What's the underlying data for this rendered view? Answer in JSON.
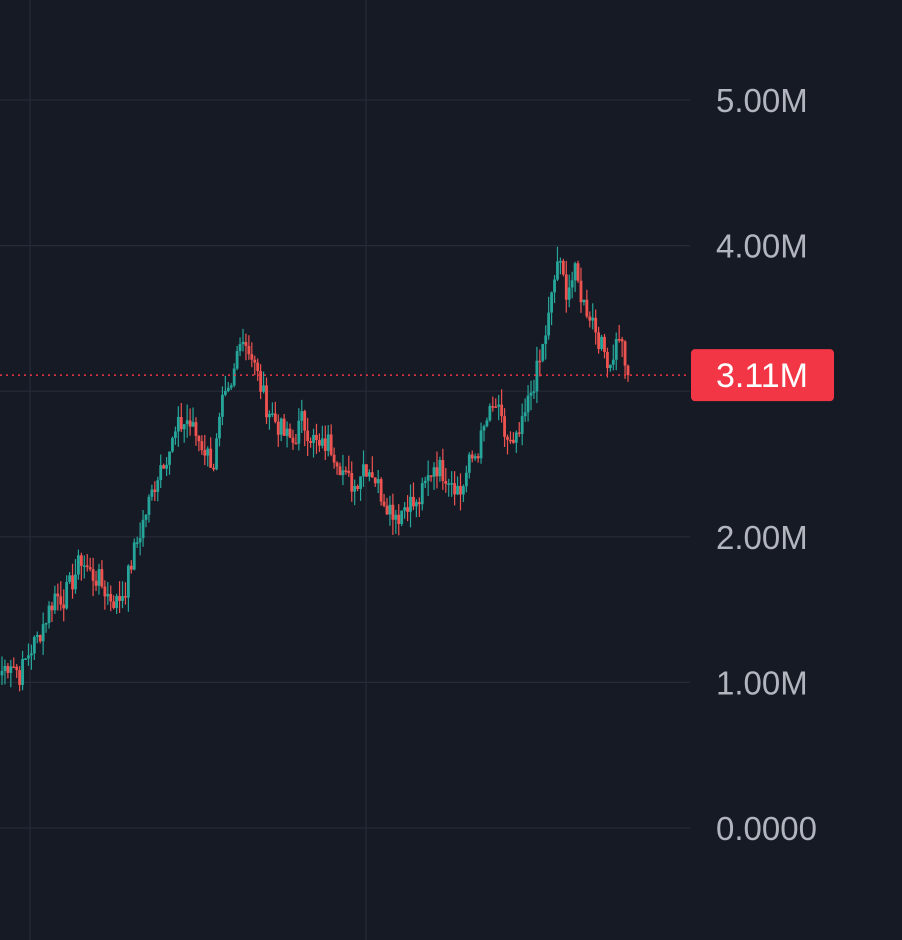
{
  "colors": {
    "background": "#161a25",
    "grid": "#262b38",
    "up": "#26a69a",
    "down": "#ef5350",
    "price_tag": "#f23645",
    "axis_text": "#b2b5be"
  },
  "price_axis": {
    "ticks": [
      {
        "value": 5000000,
        "label": "5.00M"
      },
      {
        "value": 4000000,
        "label": "4.00M"
      },
      {
        "value": 2000000,
        "label": "2.00M"
      },
      {
        "value": 1000000,
        "label": "1.00M"
      },
      {
        "value": 0,
        "label": "0.0000"
      }
    ]
  },
  "last_price": {
    "value": 3110000,
    "label": "3.11M"
  },
  "chart_data": {
    "type": "candlestick",
    "ylim": [
      0,
      5000000
    ],
    "grid": true,
    "close_values_approx": [
      1080000,
      1150000,
      1050000,
      1200000,
      1300000,
      1450000,
      1600000,
      1580000,
      1700000,
      1850000,
      1750000,
      1700000,
      1600000,
      1550000,
      1650000,
      1900000,
      2100000,
      2300000,
      2500000,
      2600000,
      2750000,
      2800000,
      2700000,
      2600000,
      2500000,
      2900000,
      3000000,
      3400000,
      3300000,
      3100000,
      2900000,
      2800000,
      2700000,
      2650000,
      2800000,
      2700000,
      2600000,
      2650000,
      2550000,
      2400000,
      2350000,
      2500000,
      2450000,
      2300000,
      2200000,
      2150000,
      2250000,
      2200000,
      2350000,
      2500000,
      2450000,
      2400000,
      2300000,
      2500000,
      2600000,
      2800000,
      2900000,
      2700000,
      2600000,
      2750000,
      3000000,
      3200000,
      3500000,
      3900000,
      3700000,
      3800000,
      3600000,
      3500000,
      3300000,
      3200000,
      3400000,
      3110000
    ]
  }
}
